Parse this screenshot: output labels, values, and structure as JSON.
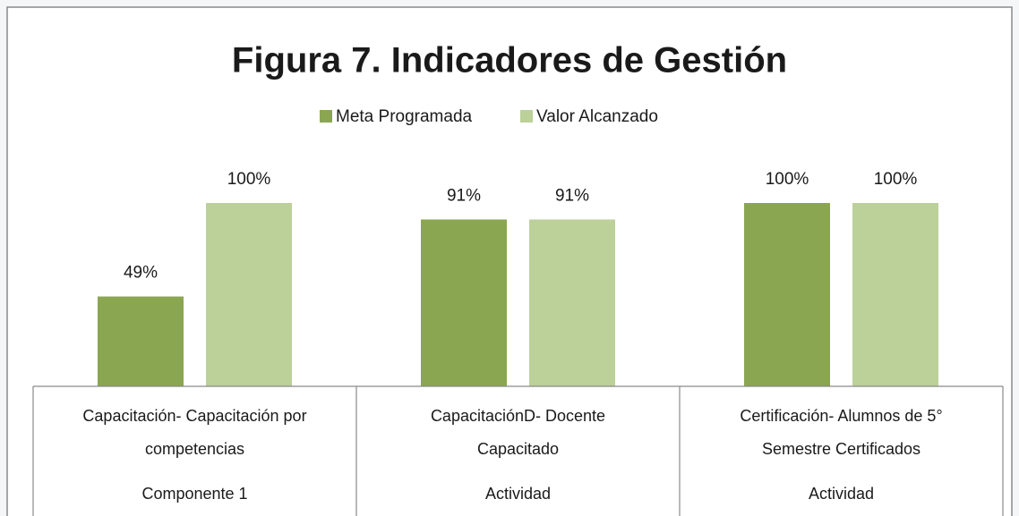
{
  "chart_data": {
    "type": "bar",
    "title": "Figura 7. Indicadores de Gestión",
    "categories": [
      "Capacitación-  Capacitación por competencias",
      "CapacitaciónD- Docente Capacitado",
      "Certificación- Alumnos de 5° Semestre Certificados"
    ],
    "groups": [
      "Componente 1",
      "Actividad",
      "Actividad"
    ],
    "series": [
      {
        "name": "Meta Programada",
        "color": "#8aa651",
        "values": [
          49,
          91,
          100
        ],
        "value_labels": [
          "49%",
          "91%",
          "100%"
        ]
      },
      {
        "name": "Valor Alcanzado",
        "color": "#bcd09a",
        "values": [
          100,
          91,
          100
        ],
        "value_labels": [
          "100%",
          "91%",
          "100%"
        ]
      }
    ],
    "legend": "top"
  }
}
